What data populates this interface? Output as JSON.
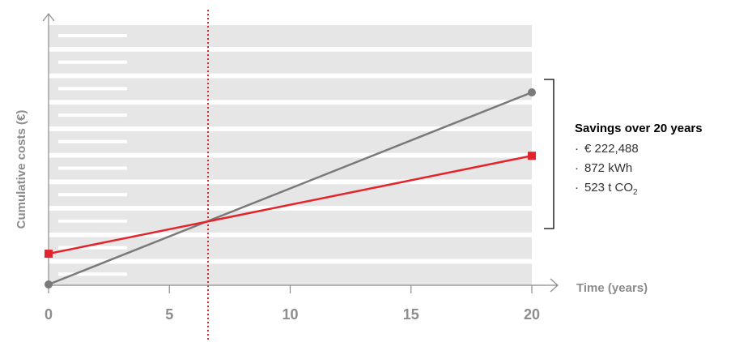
{
  "chart_data": {
    "type": "line",
    "xlabel": "Time (years)",
    "ylabel": "Cumulative costs (€)",
    "xlim": [
      0,
      20
    ],
    "ylim": [
      0,
      100
    ],
    "xticks": [
      "0",
      "5",
      "10",
      "15",
      "20"
    ],
    "break_even_x": 6.6,
    "series": [
      {
        "key": "grey",
        "color": "#7a7a7a",
        "marker": "circle",
        "x": [
          0,
          20
        ],
        "y": [
          0,
          100
        ]
      },
      {
        "key": "red",
        "color": "#e3242b",
        "marker": "square",
        "x": [
          0,
          20
        ],
        "y": [
          16,
          67
        ]
      }
    ],
    "grid": true,
    "annotation": {
      "title": "Savings over 20 years",
      "items": [
        {
          "bullet": "·",
          "text": "€ 222,488"
        },
        {
          "bullet": "·",
          "text": "872 kWh"
        },
        {
          "bullet": "·",
          "text": "523 t CO",
          "subscript": "2"
        }
      ]
    }
  },
  "colors": {
    "background_band": "#e6e6e6",
    "axis": "#8c8c8c",
    "dotted_line": "#e3242b"
  }
}
